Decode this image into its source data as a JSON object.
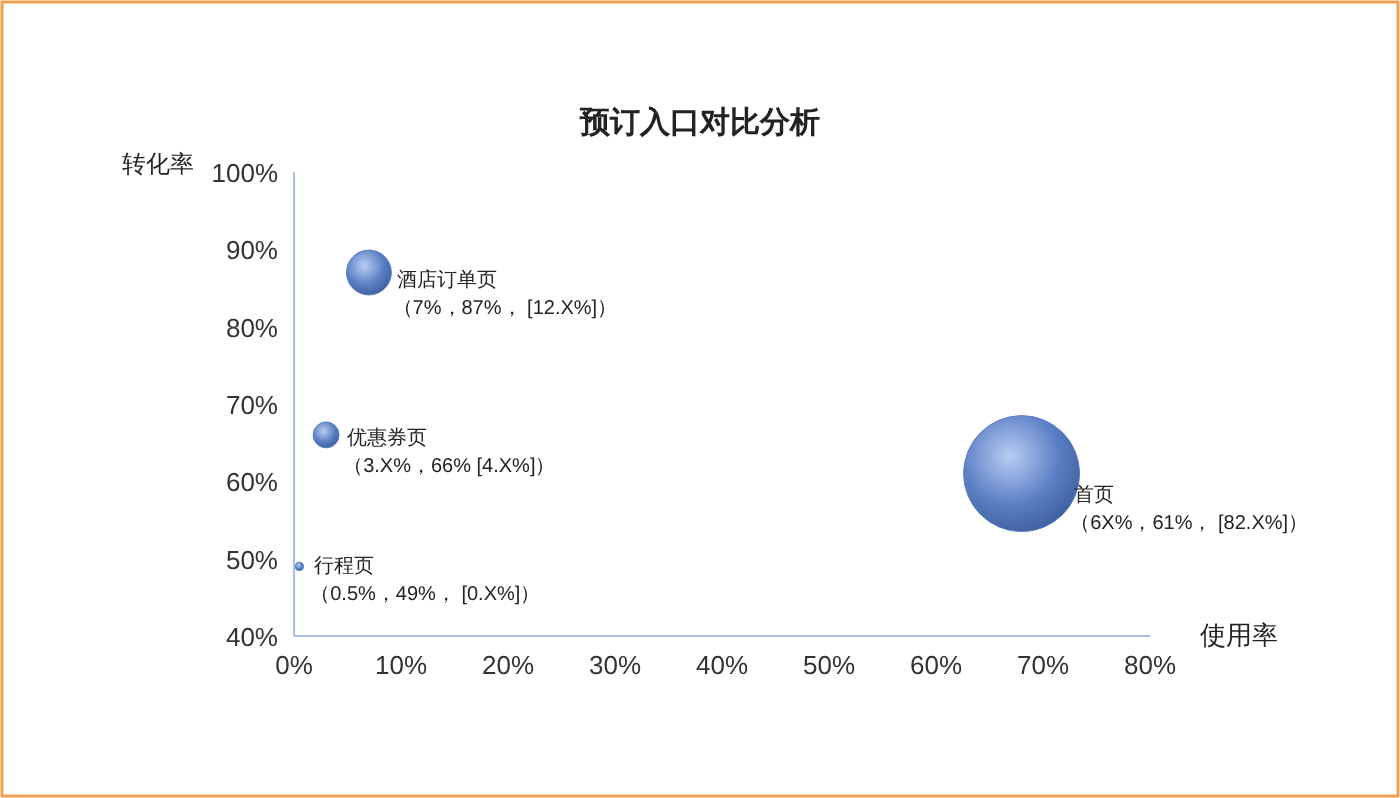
{
  "chart_data": {
    "type": "bubble",
    "title": "预订入口对比分析",
    "xlabel": "使用率",
    "ylabel": "转化率",
    "xlim": [
      0,
      80
    ],
    "ylim": [
      40,
      100
    ],
    "xticks": [
      {
        "value": 0,
        "label": "0%"
      },
      {
        "value": 10,
        "label": "10%"
      },
      {
        "value": 20,
        "label": "20%"
      },
      {
        "value": 30,
        "label": "30%"
      },
      {
        "value": 40,
        "label": "40%"
      },
      {
        "value": 50,
        "label": "50%"
      },
      {
        "value": 60,
        "label": "60%"
      },
      {
        "value": 70,
        "label": "70%"
      },
      {
        "value": 80,
        "label": "80%"
      }
    ],
    "yticks": [
      {
        "value": 40,
        "label": "40%"
      },
      {
        "value": 50,
        "label": "50%"
      },
      {
        "value": 60,
        "label": "60%"
      },
      {
        "value": 70,
        "label": "70%"
      },
      {
        "value": 80,
        "label": "80%"
      },
      {
        "value": 90,
        "label": "90%"
      },
      {
        "value": 100,
        "label": "100%"
      }
    ],
    "grid": false,
    "legend": false,
    "series": [
      {
        "name": "酒店订单页",
        "color": "#5b7fc4",
        "x": [
          7
        ],
        "values": [
          87
        ],
        "sizes": [
          0.15
        ]
      },
      {
        "name": "优惠券页",
        "color": "#5b7fc4",
        "x": [
          3
        ],
        "values": [
          66
        ],
        "sizes": [
          0.05
        ]
      },
      {
        "name": "行程页",
        "color": "#5b7fc4",
        "x": [
          0.5
        ],
        "values": [
          49
        ],
        "sizes": [
          0.005
        ]
      },
      {
        "name": "首页",
        "color": "#5b7fc4",
        "x": [
          68
        ],
        "values": [
          61
        ],
        "sizes": [
          1
        ]
      }
    ],
    "annotations": [
      "（7%，87%， [12.X%]）",
      "（3.X%，66%  [4.X%]）",
      "（0.5%，49%， [0.X%]）",
      "（6X%，61%， [82.X%]）"
    ]
  }
}
